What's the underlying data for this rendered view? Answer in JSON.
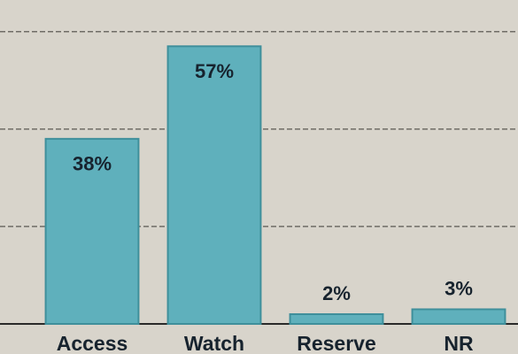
{
  "chart_data": {
    "type": "bar",
    "categories": [
      "Access",
      "Watch",
      "Reserve",
      "NR"
    ],
    "values": [
      38,
      57,
      2,
      3
    ],
    "value_labels": [
      "38%",
      "57%",
      "2%",
      "3%"
    ],
    "color": "#5fb0bc",
    "ylim": [
      0,
      66.5
    ],
    "yticks": [
      20,
      40,
      60
    ],
    "grid": true
  }
}
